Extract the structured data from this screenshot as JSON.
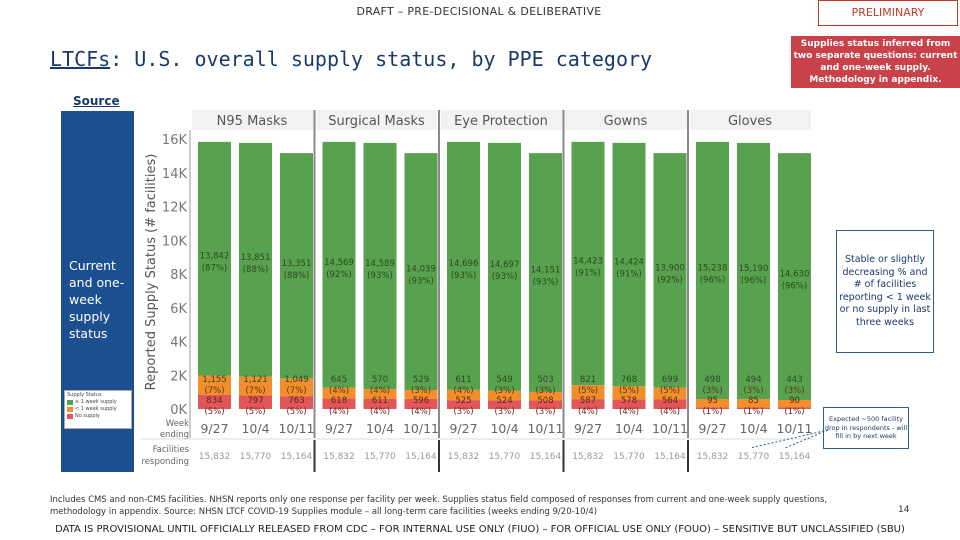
{
  "header": {
    "draft": "DRAFT – PRE-DECISIONAL & DELIBERATIVE",
    "preliminary": "PRELIMINARY",
    "title_prefix": "LTCFs",
    "title_rest": ": U.S. overall supply status, by PPE category",
    "source_link": "Source"
  },
  "callout_red": "Supplies status inferred from two separate questions: current and one-week supply. Methodology in appendix.",
  "left_panel": "Current and one-week supply status",
  "legend": {
    "title": "Supply Status",
    "items": [
      "≥ 1 week supply",
      "< 1 week supply",
      "No supply"
    ]
  },
  "note_stable": "Stable or slightly decreasing % and # of facilities reporting < 1 week or no supply in last three weeks",
  "note_expected": "Expected ~500 facility drop in respondents - will fill in by next week",
  "footnote": "Includes CMS and non-CMS facilities. NHSN reports only one response per facility per week. Supplies status field composed of responses from current and one-week supply questions, methodology in appendix. Source: NHSN LTCF COVID-19 Supplies module – all long-term care facilities (weeks ending 9/20-10/4)",
  "page_number": "14",
  "disclaimer": "DATA IS PROVISIONAL UNTIL OFFICIALLY RELEASED FROM CDC – FOR INTERNAL USE ONLY (FIUO) – FOR OFFICIAL USE ONLY (FOUO) – SENSITIVE BUT UNCLASSIFIED (SBU)",
  "chart_data": {
    "type": "bar",
    "stacked": true,
    "ylabel": "Reported Supply Status (# facilities)",
    "ylim": [
      0,
      16500
    ],
    "yticks": [
      "0K",
      "2K",
      "4K",
      "6K",
      "8K",
      "10K",
      "12K",
      "14K",
      "16K"
    ],
    "week_label": "Week ending",
    "facilities_label": "Facilities responding",
    "colors": {
      "green": "#58a14e",
      "orange": "#f28e2b",
      "red": "#e15759"
    },
    "panels": [
      {
        "name": "N95 Masks",
        "weeks": [
          "9/27",
          "10/4",
          "10/11"
        ],
        "facilities": [
          "15,832",
          "15,770",
          "15,164"
        ],
        "green": [
          13842,
          13851,
          13351
        ],
        "green_pct": [
          "(87%)",
          "(88%)",
          "(88%)"
        ],
        "orange": [
          1155,
          1121,
          1049
        ],
        "orange_pct": [
          "(7%)",
          "(7%)",
          "(7%)"
        ],
        "red": [
          834,
          797,
          763
        ],
        "red_pct": [
          "(5%)",
          "(5%)",
          "(5%)"
        ]
      },
      {
        "name": "Surgical Masks",
        "weeks": [
          "9/27",
          "10/4",
          "10/11"
        ],
        "facilities": [
          "15,832",
          "15,770",
          "15,164"
        ],
        "green": [
          14569,
          14589,
          14039
        ],
        "green_pct": [
          "(92%)",
          "(93%)",
          "(93%)"
        ],
        "orange": [
          645,
          570,
          529
        ],
        "orange_pct": [
          "(4%)",
          "(4%)",
          "(3%)"
        ],
        "red": [
          618,
          611,
          596
        ],
        "red_pct": [
          "(4%)",
          "(4%)",
          "(4%)"
        ]
      },
      {
        "name": "Eye Protection",
        "weeks": [
          "9/27",
          "10/4",
          "10/11"
        ],
        "facilities": [
          "15,832",
          "15,770",
          "15,164"
        ],
        "green": [
          14696,
          14697,
          14151
        ],
        "green_pct": [
          "(93%)",
          "(93%)",
          "(93%)"
        ],
        "orange": [
          611,
          549,
          503
        ],
        "orange_pct": [
          "(4%)",
          "(3%)",
          "(3%)"
        ],
        "red": [
          525,
          524,
          508
        ],
        "red_pct": [
          "(3%)",
          "(3%)",
          "(3%)"
        ]
      },
      {
        "name": "Gowns",
        "weeks": [
          "9/27",
          "10/4",
          "10/11"
        ],
        "facilities": [
          "15,832",
          "15,770",
          "15,164"
        ],
        "green": [
          14423,
          14424,
          13900
        ],
        "green_pct": [
          "(91%)",
          "(91%)",
          "(92%)"
        ],
        "orange": [
          821,
          768,
          699
        ],
        "orange_pct": [
          "(5%)",
          "(5%)",
          "(5%)"
        ],
        "red": [
          587,
          578,
          564
        ],
        "red_pct": [
          "(4%)",
          "(4%)",
          "(4%)"
        ]
      },
      {
        "name": "Gloves",
        "weeks": [
          "9/27",
          "10/4",
          "10/11"
        ],
        "facilities": [
          "15,832",
          "15,770",
          "15,164"
        ],
        "green": [
          15238,
          15190,
          14630
        ],
        "green_pct": [
          "(96%)",
          "(96%)",
          "(96%)"
        ],
        "orange": [
          498,
          494,
          443
        ],
        "orange_pct": [
          "(3%)",
          "(3%)",
          "(3%)"
        ],
        "red": [
          95,
          85,
          90
        ],
        "red_pct": [
          "(1%)",
          "(1%)",
          "(1%)"
        ]
      }
    ]
  }
}
